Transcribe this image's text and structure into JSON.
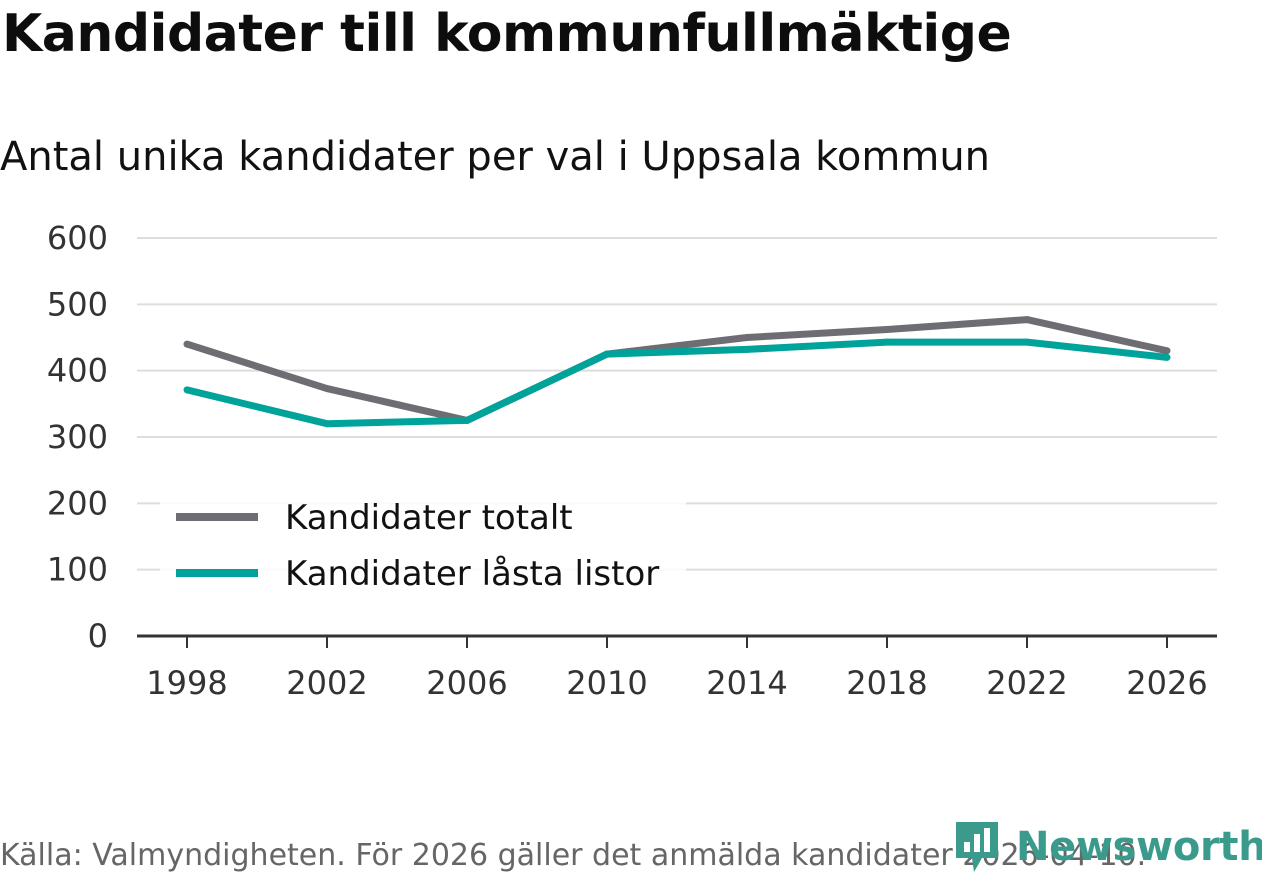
{
  "title": "Kandidater till kommunfullmäktige",
  "subtitle": "Antal unika kandidater per val i Uppsala kommun",
  "source": "Källa: Valmyndigheten. För 2026 gäller det anmälda kandidater 2026-04-10.",
  "brand": {
    "name": "Newsworthy",
    "icon": "bar-chart-speech-icon",
    "color": "#3a9a8c"
  },
  "chart_data": {
    "type": "line",
    "title": "Kandidater till kommunfullmäktige",
    "subtitle": "Antal unika kandidater per val i Uppsala kommun",
    "xlabel": "",
    "ylabel": "",
    "x": [
      "1998",
      "2002",
      "2006",
      "2010",
      "2014",
      "2018",
      "2022",
      "2026"
    ],
    "ylim": [
      0,
      600
    ],
    "yticks": [
      "0",
      "100",
      "200",
      "300",
      "400",
      "500",
      "600"
    ],
    "grid": true,
    "legend_position": "bottom-left",
    "series": [
      {
        "name": "Kandidater totalt",
        "color": "#6e6d73",
        "values": [
          440,
          373,
          325,
          425,
          450,
          462,
          477,
          430
        ]
      },
      {
        "name": "Kandidater låsta listor",
        "color": "#00a39a",
        "values": [
          371,
          320,
          325,
          425,
          432,
          443,
          443,
          420
        ]
      }
    ]
  }
}
